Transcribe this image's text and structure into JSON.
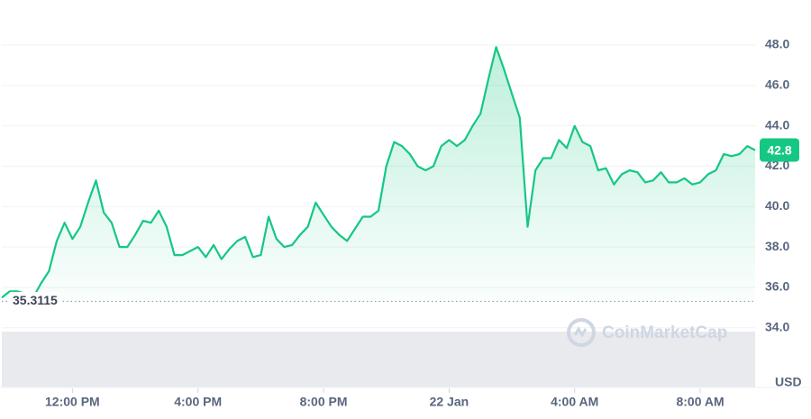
{
  "chart_data": {
    "type": "line",
    "color": "#16c784",
    "x": [
      9.75,
      10,
      10.25,
      10.5,
      10.75,
      11,
      11.25,
      11.5,
      11.75,
      12,
      12.25,
      12.5,
      12.75,
      13,
      13.25,
      13.5,
      13.75,
      14,
      14.25,
      14.5,
      14.75,
      15,
      15.25,
      15.5,
      15.75,
      16,
      16.25,
      16.5,
      16.75,
      17,
      17.25,
      17.5,
      17.75,
      18,
      18.25,
      18.5,
      18.75,
      19,
      19.25,
      19.5,
      19.75,
      20,
      20.25,
      20.5,
      20.75,
      21,
      21.25,
      21.5,
      21.75,
      22,
      22.25,
      22.5,
      22.75,
      23,
      23.25,
      23.5,
      23.75,
      24,
      24.25,
      24.5,
      24.75,
      25,
      25.25,
      25.5,
      25.75,
      26,
      26.25,
      26.5,
      26.75,
      27,
      27.25,
      27.5,
      27.75,
      28,
      28.25,
      28.5,
      28.75,
      29,
      29.25,
      29.5,
      29.75,
      30,
      30.25,
      30.5,
      30.75,
      31,
      31.25,
      31.5,
      31.75,
      32,
      32.25,
      32.5,
      32.75,
      33,
      33.25,
      33.5,
      33.75
    ],
    "values": [
      35.5,
      35.8,
      35.8,
      35.7,
      35.5,
      36.2,
      36.8,
      38.3,
      39.2,
      38.4,
      39.0,
      40.2,
      41.3,
      39.7,
      39.2,
      38.0,
      38.0,
      38.6,
      39.3,
      39.2,
      39.8,
      39.0,
      37.6,
      37.6,
      37.8,
      38.0,
      37.5,
      38.1,
      37.4,
      37.9,
      38.3,
      38.5,
      37.5,
      37.6,
      39.5,
      38.4,
      38.0,
      38.1,
      38.6,
      39.0,
      40.2,
      39.6,
      39.0,
      38.6,
      38.3,
      38.9,
      39.5,
      39.5,
      39.8,
      42.0,
      43.2,
      43.0,
      42.6,
      42.0,
      41.8,
      42.0,
      43.0,
      43.3,
      43.0,
      43.3,
      44.0,
      44.6,
      46.3,
      47.9,
      46.8,
      45.6,
      44.4,
      39.0,
      41.8,
      42.4,
      42.4,
      43.3,
      42.9,
      44.0,
      43.2,
      43.0,
      41.8,
      41.9,
      41.1,
      41.6,
      41.8,
      41.7,
      41.2,
      41.3,
      41.7,
      41.2,
      41.2,
      41.4,
      41.1,
      41.2,
      41.6,
      41.8,
      42.6,
      42.5,
      42.6,
      43.0,
      42.8
    ],
    "xlim": [
      9.75,
      33.75
    ],
    "xticks": [
      {
        "value": 12,
        "label": "12:00 PM"
      },
      {
        "value": 16,
        "label": "4:00 PM"
      },
      {
        "value": 20,
        "label": "8:00 PM"
      },
      {
        "value": 24,
        "label": "22 Jan"
      },
      {
        "value": 28,
        "label": "4:00 AM"
      },
      {
        "value": 32,
        "label": "8:00 AM"
      }
    ],
    "ylim": [
      31,
      50
    ],
    "yticks": [
      {
        "value": 34,
        "label": "34.0"
      },
      {
        "value": 36,
        "label": "36.0"
      },
      {
        "value": 38,
        "label": "38.0"
      },
      {
        "value": 40,
        "label": "40.0"
      },
      {
        "value": 42,
        "label": "42.0"
      },
      {
        "value": 44,
        "label": "44.0"
      },
      {
        "value": 46,
        "label": "46.0"
      },
      {
        "value": 48,
        "label": "48.0"
      }
    ],
    "grid": true,
    "baseline": 35.3115,
    "last_price": 42.8,
    "watermark": "CoinMarketCap",
    "unit": "USD"
  }
}
